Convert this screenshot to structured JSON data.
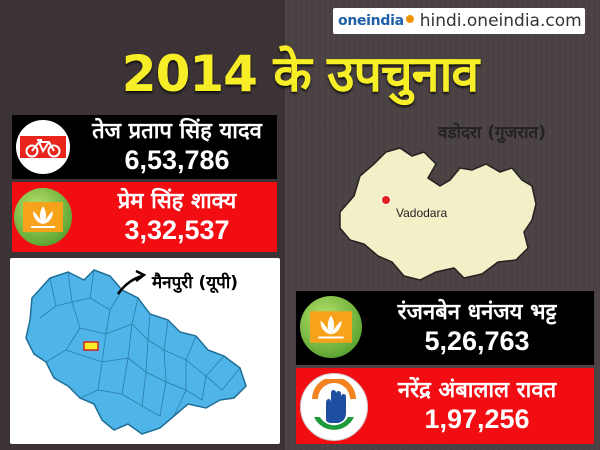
{
  "source": {
    "logo_text": "oneindia",
    "site": "hindi.oneindia.com"
  },
  "title": "2014 के उपचुनाव",
  "mainpuri": {
    "candidates": [
      {
        "name": "तेज प्रताप सिंह यादव",
        "votes": "6,53,786",
        "symbol": "bicycle-icon",
        "panel_color": "#000000"
      },
      {
        "name": "प्रेम सिंह शाक्य",
        "votes": "3,32,537",
        "symbol": "lotus-icon",
        "panel_color": "#f20d13"
      }
    ],
    "map_label": "मैनपुरी (यूपी)",
    "map_color": "#4fb5e8"
  },
  "vadodara": {
    "map_label": "वडोदरा (गुजरात)",
    "city_label": "Vadodara",
    "map_color": "#f3efc6",
    "candidates": [
      {
        "name": "रंजनबेन धनंजय भट्ट",
        "votes": "5,26,763",
        "symbol": "lotus-icon",
        "panel_color": "#000000"
      },
      {
        "name": "नरेंद्र अंबालाल रावत",
        "votes": "1,97,256",
        "symbol": "hand-icon",
        "panel_color": "#f20d13"
      }
    ]
  }
}
